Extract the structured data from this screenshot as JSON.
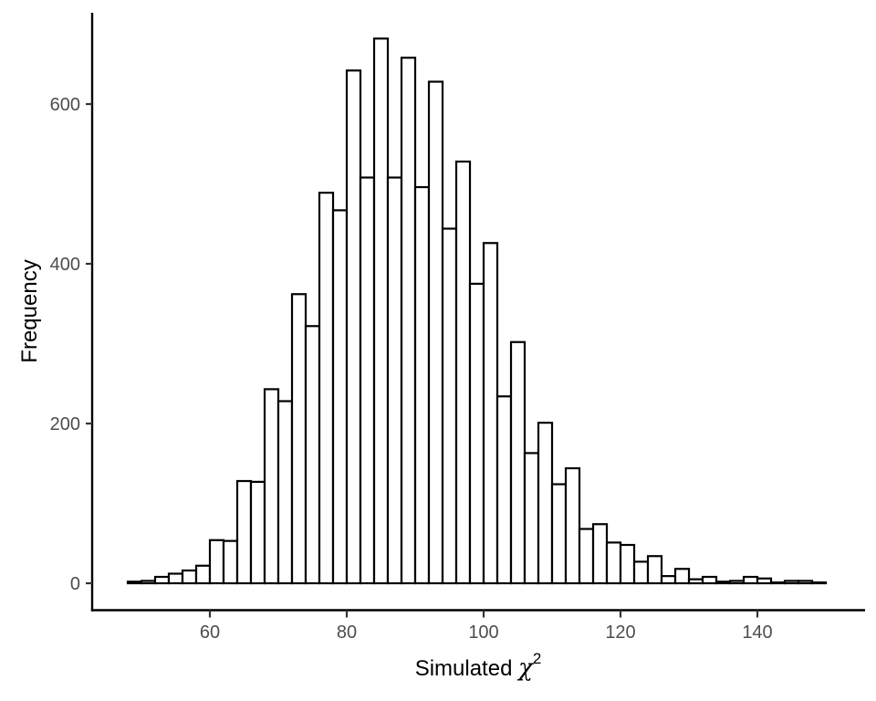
{
  "figure": {
    "background": "#ffffff",
    "ylabel": "Frequency",
    "xlabel_prefix": "Simulated ",
    "xlabel_symbol": "χ",
    "xlabel_superscript": "2"
  },
  "chart_data": {
    "type": "bar",
    "subtype": "histogram",
    "title": "",
    "xlabel": "Simulated χ^2",
    "ylabel": "Frequency",
    "legend_position": "none",
    "grid": false,
    "bin_start": 48,
    "bin_width": 2,
    "frequencies": [
      2,
      3,
      8,
      12,
      16,
      22,
      54,
      53,
      128,
      127,
      243,
      228,
      362,
      322,
      489,
      467,
      642,
      508,
      682,
      508,
      658,
      496,
      628,
      444,
      528,
      375,
      426,
      234,
      302,
      163,
      201,
      124,
      144,
      68,
      74,
      51,
      48,
      27,
      34,
      9,
      18,
      5,
      8,
      2,
      3,
      8,
      6,
      1,
      3,
      3,
      1
    ],
    "x_ticks": [
      60,
      80,
      100,
      120,
      140
    ],
    "y_ticks": [
      0,
      200,
      400,
      600
    ],
    "xlim": [
      42.8,
      155.73
    ],
    "ylim": [
      -33.7,
      714.3
    ],
    "bar_fill": "#ffffff",
    "bar_stroke": "#000000",
    "axis_color": "#000000",
    "tick_color": "#333333",
    "tick_label_color": "#4d4d4d"
  }
}
